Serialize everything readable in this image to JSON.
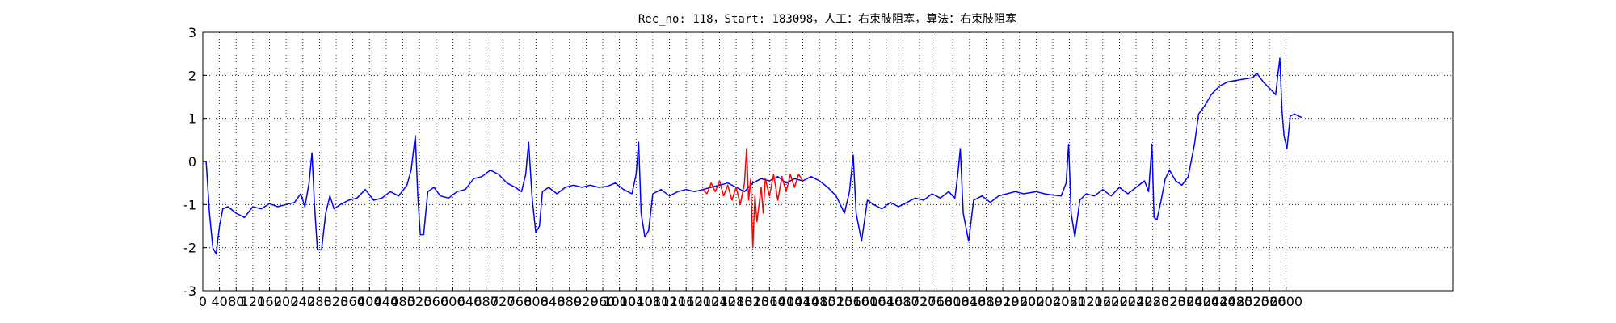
{
  "chart_data": {
    "type": "line",
    "title": "Rec_no: 118，Start: 183098，人工：右束肢阻塞，算法：右束肢阻塞",
    "xlim": [
      0,
      3000
    ],
    "ylim": [
      -3,
      3
    ],
    "yticks": [
      -3,
      -2,
      -1,
      0,
      1,
      2,
      3
    ],
    "xticks": [
      0,
      40,
      80,
      120,
      160,
      200,
      240,
      280,
      320,
      360,
      400,
      440,
      480,
      520,
      560,
      600,
      640,
      680,
      720,
      760,
      800,
      840,
      880,
      920,
      960,
      1000,
      1040,
      1080,
      1120,
      1160,
      1200,
      1240,
      1280,
      1320,
      1360,
      1400,
      1440,
      1480,
      1520,
      1560,
      1600,
      1640,
      1680,
      1720,
      1760,
      1800,
      1840,
      1880,
      1920,
      1960,
      2000,
      2040,
      2080,
      2120,
      2160,
      2200,
      2240,
      2280,
      2320,
      2360,
      2400,
      2440,
      2480,
      2520,
      2560,
      2600
    ],
    "grid": true,
    "series": [
      {
        "color": "#0000ff",
        "x": [
          0,
          8,
          16,
          24,
          32,
          40,
          48,
          60,
          80,
          100,
          120,
          140,
          160,
          180,
          200,
          220,
          235,
          245,
          255,
          262,
          268,
          275,
          285,
          295,
          305,
          315,
          330,
          350,
          370,
          390,
          410,
          430,
          450,
          470,
          490,
          500,
          510,
          516,
          522,
          530,
          540,
          555,
          570,
          590,
          610,
          630,
          650,
          670,
          690,
          710,
          730,
          750,
          765,
          775,
          782,
          790,
          799,
          808,
          815,
          830,
          850,
          870,
          890,
          910,
          930,
          950,
          970,
          990,
          1010,
          1030,
          1040,
          1046,
          1052,
          1061,
          1070,
          1080,
          1100,
          1120,
          1140,
          1160,
          1180,
          1200,
          1220,
          1240,
          1260,
          1280,
          1300,
          1320,
          1340,
          1360,
          1380,
          1400,
          1420,
          1440,
          1460,
          1480,
          1500,
          1520,
          1540,
          1552,
          1561,
          1568,
          1581,
          1595,
          1610,
          1630,
          1650,
          1670,
          1690,
          1710,
          1730,
          1750,
          1770,
          1790,
          1805,
          1812,
          1818,
          1825,
          1838,
          1850,
          1870,
          1890,
          1910,
          1930,
          1950,
          1970,
          2000,
          2020,
          2040,
          2060,
          2072,
          2078,
          2084,
          2093,
          2105,
          2120,
          2140,
          2160,
          2180,
          2200,
          2220,
          2240,
          2260,
          2270,
          2278,
          2283,
          2290,
          2300,
          2310,
          2320,
          2335,
          2350,
          2365,
          2380,
          2390,
          2405,
          2420,
          2440,
          2460,
          2490,
          2520,
          2530,
          2545,
          2560,
          2575,
          2580,
          2585,
          2590,
          2595,
          2602,
          2610,
          2620,
          2637
        ],
        "values": [
          0,
          0,
          -1.2,
          -2.0,
          -2.15,
          -1.5,
          -1.1,
          -1.05,
          -1.2,
          -1.3,
          -1.05,
          -1.1,
          -0.98,
          -1.05,
          -1.0,
          -0.95,
          -0.75,
          -1.05,
          -0.5,
          0.2,
          -1.0,
          -2.05,
          -2.05,
          -1.2,
          -0.8,
          -1.1,
          -1.0,
          -0.9,
          -0.85,
          -0.65,
          -0.9,
          -0.85,
          -0.7,
          -0.8,
          -0.55,
          -0.2,
          0.6,
          -0.8,
          -1.7,
          -1.7,
          -0.7,
          -0.6,
          -0.8,
          -0.85,
          -0.7,
          -0.65,
          -0.4,
          -0.35,
          -0.2,
          -0.3,
          -0.5,
          -0.6,
          -0.7,
          -0.3,
          0.45,
          -0.8,
          -1.65,
          -1.5,
          -0.7,
          -0.6,
          -0.75,
          -0.6,
          -0.55,
          -0.6,
          -0.55,
          -0.6,
          -0.58,
          -0.5,
          -0.65,
          -0.75,
          -0.3,
          0.45,
          -1.2,
          -1.75,
          -1.6,
          -0.75,
          -0.65,
          -0.8,
          -0.7,
          -0.65,
          -0.7,
          -0.65,
          -0.6,
          -0.55,
          -0.5,
          -0.6,
          -0.7,
          -0.5,
          -0.4,
          -0.45,
          -0.35,
          -0.5,
          -0.4,
          -0.45,
          -0.35,
          -0.45,
          -0.6,
          -0.8,
          -1.2,
          -0.7,
          0.15,
          -1.2,
          -1.85,
          -0.9,
          -1.0,
          -1.1,
          -0.95,
          -1.05,
          -0.95,
          -0.85,
          -0.9,
          -0.75,
          -0.85,
          -0.7,
          -0.85,
          -0.3,
          0.3,
          -1.2,
          -1.85,
          -0.9,
          -0.8,
          -0.95,
          -0.8,
          -0.75,
          -0.7,
          -0.75,
          -0.7,
          -0.75,
          -0.78,
          -0.8,
          -0.5,
          0.4,
          -1.2,
          -1.75,
          -0.9,
          -0.75,
          -0.8,
          -0.65,
          -0.8,
          -0.6,
          -0.75,
          -0.6,
          -0.45,
          -0.7,
          0.4,
          -1.3,
          -1.35,
          -0.9,
          -0.4,
          -0.2,
          -0.45,
          -0.55,
          -0.35,
          0.4,
          1.1,
          1.3,
          1.55,
          1.75,
          1.85,
          1.9,
          1.95,
          2.05,
          1.85,
          1.7,
          1.55,
          2.0,
          2.4,
          1.2,
          0.6,
          0.3,
          1.05,
          1.1,
          1.02
        ]
      },
      {
        "color": "#ff0000",
        "x": [
          1200,
          1210,
          1220,
          1230,
          1240,
          1250,
          1260,
          1270,
          1280,
          1290,
          1300,
          1305,
          1310,
          1315,
          1320,
          1325,
          1330,
          1335,
          1340,
          1345,
          1350,
          1360,
          1370,
          1380,
          1390,
          1400,
          1410,
          1420,
          1430,
          1440
        ],
        "values": [
          -0.65,
          -0.75,
          -0.5,
          -0.7,
          -0.45,
          -0.8,
          -0.55,
          -0.9,
          -0.6,
          -1.0,
          -0.5,
          0.3,
          -0.9,
          -0.4,
          -2.0,
          -0.8,
          -1.4,
          -1.0,
          -0.6,
          -1.2,
          -0.4,
          -0.8,
          -0.3,
          -0.9,
          -0.35,
          -0.7,
          -0.3,
          -0.6,
          -0.3,
          -0.45
        ]
      }
    ]
  }
}
